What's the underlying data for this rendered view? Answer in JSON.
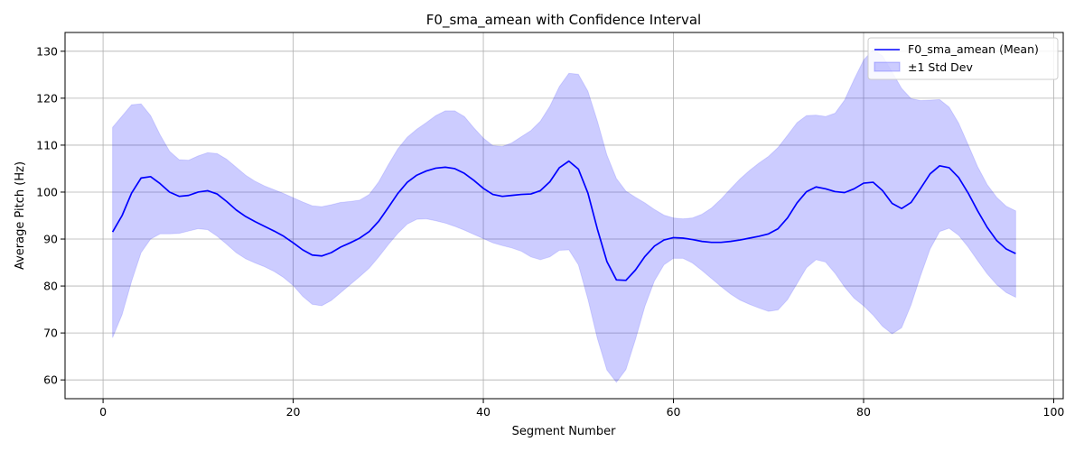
{
  "chart_data": {
    "type": "line",
    "title": "F0_sma_amean with Confidence Interval",
    "xlabel": "Segment Number",
    "ylabel": "Average Pitch (Hz)",
    "xlim": [
      -4,
      101
    ],
    "ylim": [
      56,
      134
    ],
    "xticks": [
      0,
      20,
      40,
      60,
      80,
      100
    ],
    "yticks": [
      60,
      70,
      80,
      90,
      100,
      110,
      120,
      130
    ],
    "grid": true,
    "legend_position": "top-right",
    "colors": {
      "line": "#0000ff",
      "band": "#0000ff"
    },
    "x": [
      1,
      2,
      3,
      4,
      5,
      6,
      7,
      8,
      9,
      10,
      11,
      12,
      13,
      14,
      15,
      16,
      17,
      18,
      19,
      20,
      21,
      22,
      23,
      24,
      25,
      26,
      27,
      28,
      29,
      30,
      31,
      32,
      33,
      34,
      35,
      36,
      37,
      38,
      39,
      40,
      41,
      42,
      43,
      44,
      45,
      46,
      47,
      48,
      49,
      50,
      51,
      52,
      53,
      54,
      55,
      56,
      57,
      58,
      59,
      60,
      61,
      62,
      63,
      64,
      65,
      66,
      67,
      68,
      69,
      70,
      71,
      72,
      73,
      74,
      75,
      76,
      77,
      78,
      79,
      80,
      81,
      82,
      83,
      84,
      85,
      86,
      87,
      88,
      89,
      90,
      91,
      92,
      93,
      94,
      95,
      96
    ],
    "series": [
      {
        "name": "F0_sma_amean (Mean)",
        "kind": "line",
        "values": [
          91.5,
          95,
          99.8,
          103,
          103.3,
          101.8,
          100,
          99.1,
          99.3,
          100,
          100.3,
          99.6,
          98,
          96.2,
          94.8,
          93.7,
          92.7,
          91.7,
          90.6,
          89.2,
          87.7,
          86.6,
          86.4,
          87.1,
          88.3,
          89.2,
          90.2,
          91.6,
          93.8,
          96.7,
          99.7,
          102.1,
          103.6,
          104.5,
          105.1,
          105.3,
          105,
          104,
          102.5,
          100.8,
          99.5,
          99.1,
          99.3,
          99.5,
          99.6,
          100.3,
          102.2,
          105.2,
          106.6,
          104.9,
          99.8,
          92.1,
          85.2,
          81.3,
          81.2,
          83.4,
          86.3,
          88.5,
          89.8,
          90.3,
          90.2,
          89.9,
          89.5,
          89.3,
          89.3,
          89.5,
          89.8,
          90.2,
          90.6,
          91.1,
          92.2,
          94.5,
          97.7,
          100.1,
          101.1,
          100.7,
          100.1,
          99.9,
          100.7,
          101.9,
          102.1,
          100.3,
          97.6,
          96.5,
          97.8,
          100.8,
          103.9,
          105.6,
          105.2,
          103.1,
          99.8,
          96,
          92.5,
          89.7,
          87.9,
          86.9
        ]
      },
      {
        "name": "±1 Std Dev",
        "kind": "band",
        "upper": [
          113.8,
          116.2,
          118.6,
          118.8,
          116.3,
          112.2,
          108.7,
          106.9,
          106.8,
          107.7,
          108.4,
          108.2,
          107,
          105.3,
          103.6,
          102.3,
          101.3,
          100.5,
          99.7,
          98.8,
          97.9,
          97.1,
          96.9,
          97.3,
          97.8,
          98,
          98.3,
          99.5,
          102.2,
          105.8,
          109.2,
          111.7,
          113.4,
          114.8,
          116.3,
          117.3,
          117.3,
          116.1,
          113.7,
          111.5,
          109.9,
          109.7,
          110.5,
          111.8,
          113.1,
          115.1,
          118.3,
          122.5,
          125.3,
          125.1,
          121.5,
          115.1,
          107.9,
          102.9,
          100.2,
          98.9,
          97.7,
          96.3,
          95.1,
          94.5,
          94.3,
          94.5,
          95.3,
          96.6,
          98.5,
          100.7,
          102.8,
          104.6,
          106.2,
          107.6,
          109.5,
          112.1,
          114.8,
          116.3,
          116.4,
          116.1,
          116.8,
          119.6,
          124,
          128.1,
          130.4,
          129,
          125.6,
          122.1,
          119.9,
          119.5,
          119.6,
          119.7,
          118.1,
          114.7,
          110.1,
          105.4,
          101.6,
          98.9,
          97,
          96
        ],
        "lower": [
          69,
          73.9,
          81,
          87.1,
          90,
          91.1,
          91.1,
          91.2,
          91.7,
          92.2,
          92,
          90.6,
          88.9,
          87.1,
          85.8,
          84.9,
          84.1,
          83.1,
          81.8,
          80.1,
          77.8,
          76.1,
          75.8,
          76.9,
          78.6,
          80.3,
          82,
          83.8,
          86.2,
          88.8,
          91.2,
          93.2,
          94.2,
          94.3,
          93.9,
          93.4,
          92.7,
          91.9,
          91,
          90.1,
          89.2,
          88.6,
          88.1,
          87.4,
          86.2,
          85.6,
          86.2,
          87.6,
          87.7,
          84.5,
          77.2,
          68.8,
          62.1,
          59.5,
          62.2,
          68.6,
          75.7,
          81.1,
          84.5,
          85.9,
          85.9,
          84.9,
          83.3,
          81.6,
          79.9,
          78.3,
          77,
          76.1,
          75.3,
          74.6,
          74.9,
          77.1,
          80.5,
          83.9,
          85.6,
          85.1,
          82.7,
          79.8,
          77.4,
          75.8,
          73.8,
          71.4,
          69.8,
          71.1,
          76,
          82.2,
          87.9,
          91.6,
          92.3,
          90.8,
          88.3,
          85.4,
          82.6,
          80.3,
          78.6,
          77.6
        ]
      }
    ]
  }
}
